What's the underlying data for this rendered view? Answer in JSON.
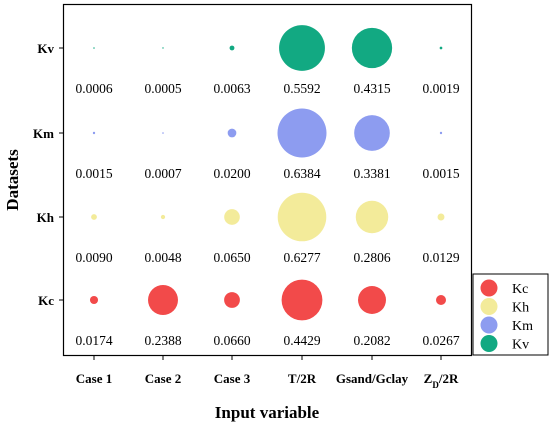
{
  "chart_data": {
    "type": "bubble",
    "xlabel": "Input variable",
    "ylabel": "Datasets",
    "categories": [
      "Case 1",
      "Case 2",
      "Case 3",
      "T/2R",
      "Gsand/Gclay",
      "ZD/2R"
    ],
    "datasets": [
      "Kc",
      "Kh",
      "Km",
      "Kv"
    ],
    "grid": false,
    "legend_position": "right",
    "series": [
      {
        "name": "Kc",
        "color": "#f24a4a",
        "values": [
          0.0174,
          0.2388,
          0.066,
          0.4429,
          0.2082,
          0.0267
        ],
        "labels": [
          "0.0174",
          "0.2388",
          "0.0660",
          "0.4429",
          "0.2082",
          "0.0267"
        ]
      },
      {
        "name": "Kh",
        "color": "#f3eb9a",
        "values": [
          0.009,
          0.0048,
          0.065,
          0.6277,
          0.2806,
          0.0129
        ],
        "labels": [
          "0.0090",
          "0.0048",
          "0.0650",
          "0.6277",
          "0.2806",
          "0.0129"
        ]
      },
      {
        "name": "Km",
        "color": "#8d9cf0",
        "values": [
          0.0015,
          0.0007,
          0.02,
          0.6384,
          0.3381,
          0.0015
        ],
        "labels": [
          "0.0015",
          "0.0007",
          "0.0200",
          "0.6384",
          "0.3381",
          "0.0015"
        ]
      },
      {
        "name": "Kv",
        "color": "#12a982",
        "values": [
          0.0006,
          0.0005,
          0.0063,
          0.5592,
          0.4315,
          0.0019
        ],
        "labels": [
          "0.0006",
          "0.0005",
          "0.0063",
          "0.5592",
          "0.4315",
          "0.0019"
        ]
      }
    ],
    "legend": [
      {
        "name": "Kc",
        "color": "#f24a4a"
      },
      {
        "name": "Kh",
        "color": "#f3eb9a"
      },
      {
        "name": "Km",
        "color": "#8d9cf0"
      },
      {
        "name": "Kv",
        "color": "#12a982"
      }
    ]
  }
}
